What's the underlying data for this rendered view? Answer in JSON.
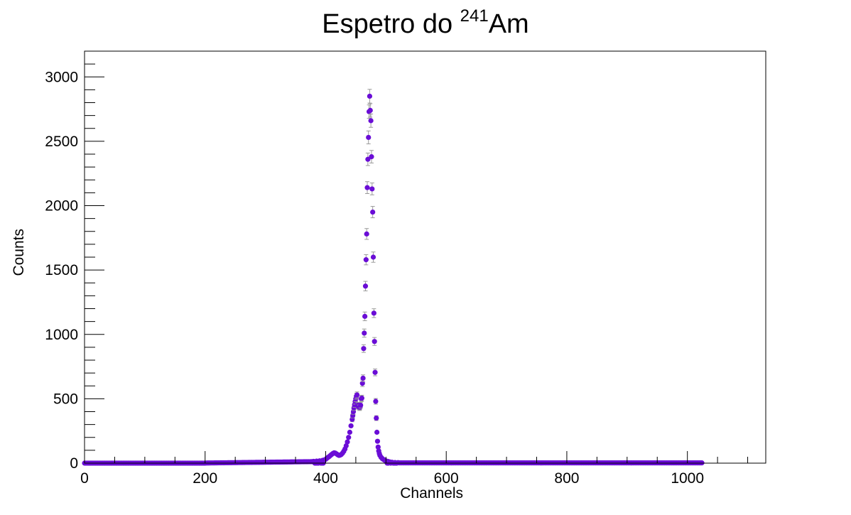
{
  "chart_data": {
    "type": "scatter",
    "title_main": "Espetro do ",
    "title_sup": "241",
    "title_end": "Am",
    "xlabel": "Channels",
    "ylabel": "Counts",
    "xlim": [
      0,
      1130
    ],
    "ylim": [
      0,
      3200
    ],
    "x_ticks": [
      0,
      200,
      400,
      600,
      800,
      1000
    ],
    "y_ticks": [
      0,
      500,
      1000,
      1500,
      2000,
      2500,
      3000
    ],
    "marker_color": "#6a0dd6",
    "errorbar_color": "#9a9a9a",
    "data_range": [
      0,
      1024
    ],
    "points": [
      [
        380,
        14
      ],
      [
        385,
        16
      ],
      [
        390,
        18
      ],
      [
        395,
        22
      ],
      [
        398,
        25
      ],
      [
        400,
        30
      ],
      [
        402,
        38
      ],
      [
        404,
        45
      ],
      [
        406,
        52
      ],
      [
        408,
        60
      ],
      [
        410,
        68
      ],
      [
        412,
        75
      ],
      [
        414,
        80
      ],
      [
        416,
        78
      ],
      [
        418,
        72
      ],
      [
        420,
        65
      ],
      [
        422,
        60
      ],
      [
        424,
        62
      ],
      [
        426,
        68
      ],
      [
        428,
        78
      ],
      [
        430,
        92
      ],
      [
        432,
        110
      ],
      [
        434,
        135
      ],
      [
        436,
        165
      ],
      [
        438,
        200
      ],
      [
        440,
        240
      ],
      [
        442,
        290
      ],
      [
        444,
        340
      ],
      [
        445,
        370
      ],
      [
        446,
        400
      ],
      [
        447,
        430
      ],
      [
        448,
        455
      ],
      [
        449,
        480
      ],
      [
        450,
        500
      ],
      [
        451,
        520
      ],
      [
        452,
        530
      ],
      [
        453,
        450
      ],
      [
        454,
        440
      ],
      [
        455,
        450
      ],
      [
        456,
        430
      ],
      [
        457,
        435
      ],
      [
        458,
        450
      ],
      [
        459,
        500
      ],
      [
        460,
        505
      ],
      [
        461,
        620
      ],
      [
        462,
        660
      ],
      [
        463,
        890
      ],
      [
        464,
        1010
      ],
      [
        465,
        1140
      ],
      [
        466,
        1375
      ],
      [
        467,
        1580
      ],
      [
        468,
        1780
      ],
      [
        469,
        2140
      ],
      [
        470,
        2360
      ],
      [
        471,
        2530
      ],
      [
        472,
        2730
      ],
      [
        473,
        2850
      ],
      [
        474,
        2740
      ],
      [
        475,
        2660
      ],
      [
        476,
        2380
      ],
      [
        477,
        2130
      ],
      [
        478,
        1950
      ],
      [
        479,
        1600
      ],
      [
        480,
        1165
      ],
      [
        481,
        945
      ],
      [
        482,
        705
      ],
      [
        483,
        480
      ],
      [
        484,
        350
      ],
      [
        485,
        240
      ],
      [
        486,
        170
      ],
      [
        487,
        125
      ],
      [
        488,
        95
      ],
      [
        489,
        75
      ],
      [
        490,
        60
      ],
      [
        492,
        45
      ],
      [
        494,
        35
      ],
      [
        496,
        28
      ],
      [
        498,
        22
      ],
      [
        500,
        18
      ],
      [
        503,
        14
      ],
      [
        506,
        10
      ],
      [
        510,
        7
      ],
      [
        515,
        5
      ],
      [
        520,
        4
      ]
    ]
  }
}
